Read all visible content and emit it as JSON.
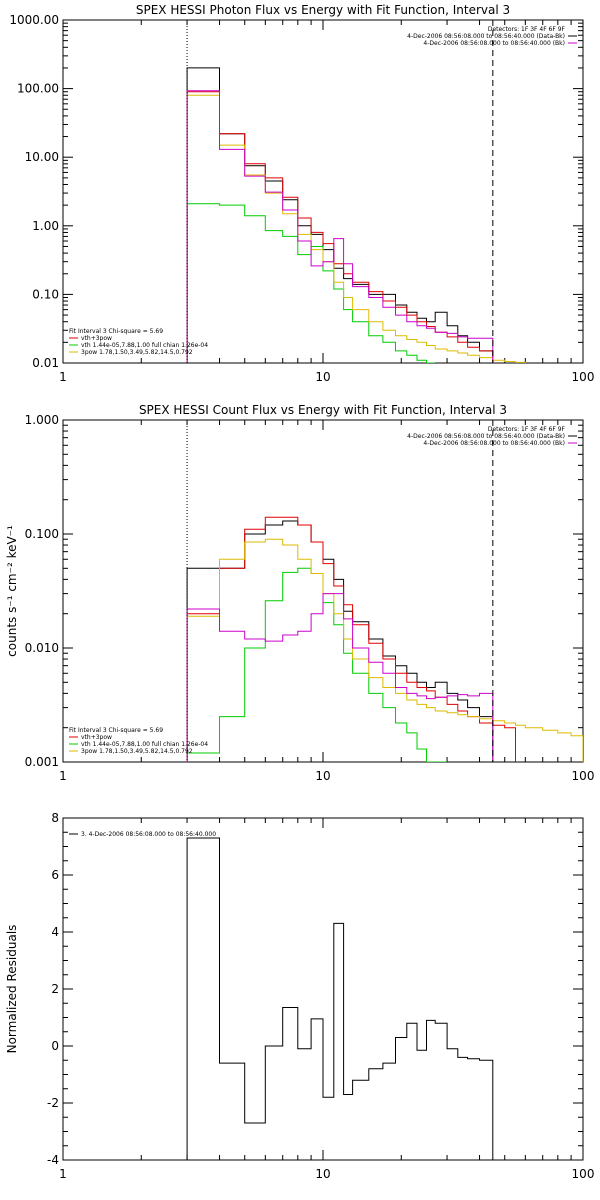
{
  "chart_data": [
    {
      "type": "line",
      "title": "SPEX HESSI Photon Flux vs Energy with Fit Function, Interval 3",
      "ylabel": "",
      "x_scale": "log",
      "y_scale": "log",
      "xlim": [
        1,
        100
      ],
      "ylim": [
        0.01,
        1000
      ],
      "x_tick_labels": [
        "1",
        "10",
        "100"
      ],
      "y_tick_labels": [
        "0.01",
        "0.10",
        "1.00",
        "10.00",
        "100.00",
        "1000.00"
      ],
      "x_tick_values": [
        1,
        10,
        100
      ],
      "y_tick_values": [
        0.01,
        0.1,
        1,
        10,
        100,
        1000
      ],
      "vlines": [
        {
          "x": 3,
          "style": "dotted",
          "color": "#000000"
        },
        {
          "x": 45,
          "style": "dashed",
          "color": "#000000"
        }
      ],
      "legend_right": [
        {
          "text": "Detectors: 1F 3F 4F 6F 9F",
          "color": "#000000"
        },
        {
          "text": "4-Dec-2006 08:56:08.000 to 08:56:40.000 (Data-Bk)",
          "color": "#000000"
        },
        {
          "text": "4-Dec-2006 08:56:08.000 to 08:56:40.000 (Bk)",
          "color": "#cc00cc"
        }
      ],
      "legend_left": [
        {
          "text": "Fit Interval 3   Chi-square = 5.69",
          "color": "#000000"
        },
        {
          "text": "vth+3pow",
          "color": "#e00000"
        },
        {
          "text": "vth 1.44e-05,7.88,1.00   full chian 1.26e-04",
          "color": "#00cc00"
        },
        {
          "text": "3pow 1.78,1.50,3.49,5.82,14.5,0.792",
          "color": "#ddbb00"
        }
      ],
      "series": [
        {
          "color": "#000000",
          "edges": [
            3,
            4,
            5,
            6,
            7,
            8,
            9,
            10,
            11,
            12,
            13,
            15,
            17,
            19,
            21,
            23,
            25,
            27,
            30,
            33,
            36,
            40,
            45
          ],
          "values": [
            200,
            22,
            7.5,
            4.5,
            2.4,
            1.0,
            0.75,
            0.45,
            0.24,
            0.17,
            0.14,
            0.1,
            0.1,
            0.07,
            0.055,
            0.045,
            0.04,
            0.055,
            0.035,
            0.025,
            0.02,
            0.015
          ]
        },
        {
          "color": "#e00000",
          "edges": [
            3,
            4,
            5,
            6,
            7,
            8,
            9,
            10,
            11,
            12,
            13,
            15,
            17,
            19,
            21,
            23,
            25,
            27,
            30,
            33,
            36,
            40,
            45
          ],
          "values": [
            90,
            22,
            8,
            5,
            2.6,
            1.3,
            0.8,
            0.55,
            0.28,
            0.2,
            0.15,
            0.11,
            0.08,
            0.065,
            0.05,
            0.04,
            0.034,
            0.028,
            0.024,
            0.02,
            0.017,
            0.015
          ]
        },
        {
          "color": "#00cc00",
          "edges": [
            3,
            4,
            5,
            6,
            7,
            8,
            9,
            10,
            11,
            12,
            13,
            15,
            17,
            19,
            21,
            23,
            25,
            27
          ],
          "values": [
            2.1,
            2.0,
            1.4,
            0.85,
            0.7,
            0.38,
            0.5,
            0.22,
            0.12,
            0.06,
            0.04,
            0.025,
            0.02,
            0.015,
            0.013,
            0.011,
            0.01
          ]
        },
        {
          "color": "#ddbb00",
          "edges": [
            3,
            4,
            5,
            6,
            7,
            8,
            9,
            10,
            11,
            12,
            13,
            15,
            17,
            19,
            21,
            23,
            25,
            27,
            30,
            33,
            36,
            40,
            45,
            50,
            55,
            60
          ],
          "values": [
            80,
            15,
            5.5,
            3.0,
            1.5,
            0.75,
            0.45,
            0.3,
            0.15,
            0.09,
            0.06,
            0.04,
            0.03,
            0.025,
            0.022,
            0.02,
            0.018,
            0.016,
            0.015,
            0.014,
            0.013,
            0.012,
            0.011,
            0.0105,
            0.0102
          ]
        },
        {
          "color": "#cc00cc",
          "edges": [
            3,
            4,
            5,
            6,
            7,
            8,
            9,
            10,
            11,
            12,
            13,
            15,
            17,
            19,
            21,
            23,
            25,
            27,
            30,
            33,
            36,
            40,
            45
          ],
          "values": [
            93,
            13,
            5.3,
            3.1,
            1.7,
            0.6,
            0.26,
            0.3,
            0.65,
            0.28,
            0.13,
            0.09,
            0.065,
            0.05,
            0.04,
            0.035,
            0.032,
            0.028,
            0.027,
            0.024,
            0.023,
            0.023
          ]
        }
      ]
    },
    {
      "type": "line",
      "title": "SPEX HESSI Count Flux vs Energy with Fit Function, Interval 3",
      "ylabel": "counts s⁻¹ cm⁻² keV⁻¹",
      "x_scale": "log",
      "y_scale": "log",
      "xlim": [
        1,
        100
      ],
      "ylim": [
        0.001,
        1
      ],
      "x_tick_labels": [
        "1",
        "10",
        "100"
      ],
      "y_tick_labels": [
        "0.001",
        "0.010",
        "0.100",
        "1.000"
      ],
      "x_tick_values": [
        1,
        10,
        100
      ],
      "y_tick_values": [
        0.001,
        0.01,
        0.1,
        1
      ],
      "vlines": [
        {
          "x": 3,
          "style": "dotted",
          "color": "#000000"
        },
        {
          "x": 45,
          "style": "dashed",
          "color": "#000000"
        }
      ],
      "legend_right": [
        {
          "text": "Detectors: 1F 3F 4F 6F 9F",
          "color": "#000000"
        },
        {
          "text": "4-Dec-2006 08:56:08.000 to 08:56:40.000 (Data-Bk)",
          "color": "#000000"
        },
        {
          "text": "4-Dec-2006 08:56:08.000 to 08:56:40.000 (Bk)",
          "color": "#cc00cc"
        }
      ],
      "legend_left": [
        {
          "text": "Fit Interval 3   Chi-square = 5.69",
          "color": "#000000"
        },
        {
          "text": "vth+3pow",
          "color": "#e00000"
        },
        {
          "text": "vth 1.44e-05,7.88,1.00   full chian 1.26e-04",
          "color": "#00cc00"
        },
        {
          "text": "3pow 1.78,1.50,3.49,5.82,14.5,0.792",
          "color": "#ddbb00"
        }
      ],
      "series": [
        {
          "color": "#000000",
          "edges": [
            3,
            4,
            5,
            6,
            7,
            8,
            9,
            10,
            11,
            12,
            13,
            15,
            17,
            19,
            21,
            23,
            25,
            27,
            30,
            33,
            36,
            40,
            45
          ],
          "values": [
            0.05,
            0.05,
            0.1,
            0.12,
            0.13,
            0.12,
            0.085,
            0.06,
            0.04,
            0.021,
            0.017,
            0.012,
            0.0085,
            0.007,
            0.006,
            0.005,
            0.0045,
            0.005,
            0.004,
            0.0035,
            0.003,
            0.0025
          ]
        },
        {
          "color": "#e00000",
          "edges": [
            3,
            4,
            5,
            6,
            7,
            8,
            9,
            10,
            11,
            12,
            13,
            15,
            17,
            19,
            21,
            23,
            25,
            27,
            30,
            33,
            36,
            40,
            45,
            50,
            55
          ],
          "values": [
            0.02,
            0.05,
            0.11,
            0.14,
            0.14,
            0.12,
            0.085,
            0.055,
            0.035,
            0.024,
            0.016,
            0.011,
            0.008,
            0.006,
            0.005,
            0.0045,
            0.0042,
            0.0037,
            0.0032,
            0.0028,
            0.0025,
            0.0022,
            0.0021,
            0.002
          ]
        },
        {
          "color": "#00cc00",
          "edges": [
            3,
            4,
            5,
            6,
            7,
            8,
            9,
            10,
            11,
            12,
            13,
            15,
            17,
            19,
            21,
            23,
            25,
            27,
            30
          ],
          "values": [
            0.0012,
            0.0025,
            0.01,
            0.026,
            0.046,
            0.05,
            0.045,
            0.025,
            0.016,
            0.009,
            0.006,
            0.004,
            0.003,
            0.0022,
            0.0018,
            0.0013,
            0.001,
            0.001
          ]
        },
        {
          "color": "#ddbb00",
          "edges": [
            3,
            4,
            5,
            6,
            7,
            8,
            9,
            10,
            11,
            12,
            13,
            15,
            17,
            19,
            21,
            23,
            25,
            27,
            30,
            33,
            36,
            40,
            45,
            50,
            55,
            60,
            70,
            80,
            90,
            100
          ],
          "values": [
            0.019,
            0.06,
            0.085,
            0.09,
            0.08,
            0.06,
            0.045,
            0.03,
            0.02,
            0.012,
            0.008,
            0.0055,
            0.0045,
            0.004,
            0.0035,
            0.0032,
            0.003,
            0.0028,
            0.0027,
            0.0026,
            0.0025,
            0.0024,
            0.0023,
            0.0022,
            0.0021,
            0.002,
            0.0019,
            0.0018,
            0.0017
          ]
        },
        {
          "color": "#cc00cc",
          "edges": [
            3,
            4,
            5,
            6,
            7,
            8,
            9,
            10,
            11,
            12,
            13,
            15,
            17,
            19,
            21,
            23,
            25,
            27,
            30,
            33,
            36,
            40,
            45
          ],
          "values": [
            0.022,
            0.014,
            0.012,
            0.0115,
            0.013,
            0.014,
            0.02,
            0.03,
            0.03,
            0.018,
            0.01,
            0.0075,
            0.006,
            0.0045,
            0.004,
            0.0038,
            0.0036,
            0.0037,
            0.0038,
            0.0039,
            0.0038,
            0.004
          ]
        }
      ]
    },
    {
      "type": "line",
      "title": "",
      "ylabel": "Normalized Residuals",
      "x_scale": "log",
      "y_scale": "linear",
      "xlim": [
        1,
        100
      ],
      "ylim": [
        -4,
        8
      ],
      "x_tick_labels": [
        "1",
        "10",
        "100"
      ],
      "y_tick_labels": [
        "-4",
        "-2",
        "0",
        "2",
        "4",
        "6",
        "8"
      ],
      "x_tick_values": [
        1,
        10,
        100
      ],
      "y_tick_values": [
        -4,
        -2,
        0,
        2,
        4,
        6,
        8
      ],
      "legend_left": [
        {
          "text": "3.  4-Dec-2006 08:56:08.000 to 08:56:40.000",
          "color": "#000000"
        }
      ],
      "series": [
        {
          "color": "#000000",
          "edges": [
            3,
            4,
            5,
            6,
            7,
            8,
            9,
            10,
            11,
            12,
            13,
            15,
            17,
            19,
            21,
            23,
            25,
            27,
            30,
            33,
            36,
            40,
            45
          ],
          "values": [
            7.3,
            -0.6,
            -2.7,
            0.0,
            1.35,
            -0.1,
            0.95,
            -1.8,
            4.3,
            -1.7,
            -1.2,
            -0.8,
            -0.6,
            0.3,
            0.8,
            -0.15,
            0.9,
            0.8,
            -0.1,
            -0.4,
            -0.45,
            -0.5
          ]
        }
      ]
    }
  ]
}
